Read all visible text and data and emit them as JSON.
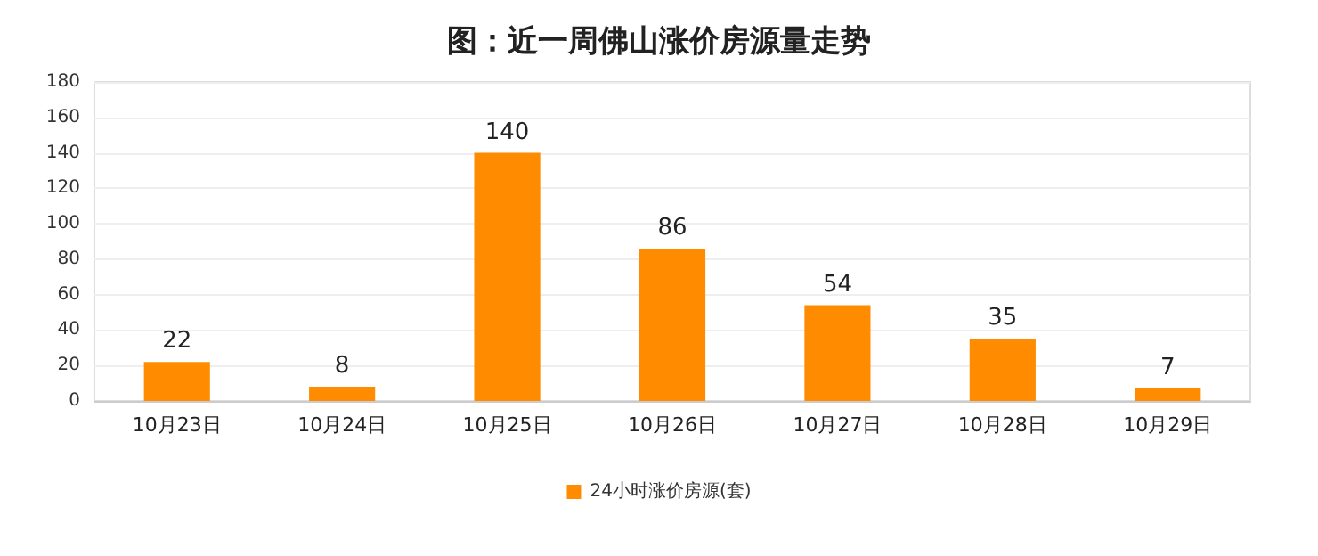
{
  "chart_data": {
    "type": "bar",
    "title": "图：近一周佛山涨价房源量走势",
    "categories": [
      "10月23日",
      "10月24日",
      "10月25日",
      "10月26日",
      "10月27日",
      "10月28日",
      "10月29日"
    ],
    "series": [
      {
        "name": "24小时涨价房源(套)",
        "color": "#ff8c00",
        "values": [
          22,
          8,
          140,
          86,
          54,
          35,
          7
        ]
      }
    ],
    "ylim": [
      0,
      180
    ],
    "yticks": [
      0,
      20,
      40,
      60,
      80,
      100,
      120,
      140,
      160,
      180
    ],
    "grid": "y",
    "legend": "bottom",
    "data_labels": true
  }
}
